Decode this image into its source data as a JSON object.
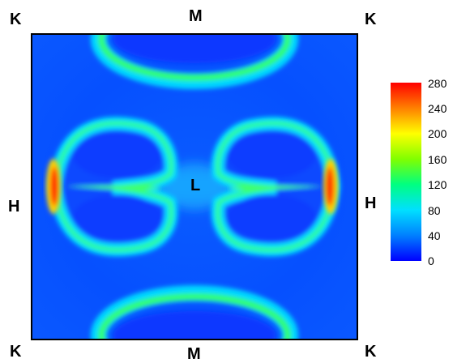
{
  "chart_data": {
    "type": "heatmap",
    "title": "",
    "xlabel": "",
    "ylabel": "",
    "point_labels": {
      "corner_top_left": "K",
      "corner_top_right": "K",
      "corner_bottom_left": "K",
      "corner_bottom_right": "K",
      "top_mid": "M",
      "bottom_mid": "M",
      "left_mid": "H",
      "right_mid": "H",
      "center": "L"
    },
    "colorbar": {
      "range": [
        0,
        280
      ],
      "ticks": [
        "280",
        "240",
        "200",
        "160",
        "120",
        "80",
        "40",
        "0"
      ],
      "colormap": [
        "#0000ff",
        "#0080ff",
        "#00e0ff",
        "#00ff80",
        "#80ff00",
        "#ffff00",
        "#ff8000",
        "#ff0000"
      ]
    },
    "features": [
      {
        "name": "top-arc",
        "level": 130
      },
      {
        "name": "bottom-arc",
        "level": 130
      },
      {
        "name": "left-lobe-ring",
        "level": 120
      },
      {
        "name": "right-lobe-ring",
        "level": 120
      },
      {
        "name": "left-edge-peak",
        "level": 270
      },
      {
        "name": "right-edge-peak",
        "level": 270
      },
      {
        "name": "background",
        "level": 40
      }
    ]
  }
}
